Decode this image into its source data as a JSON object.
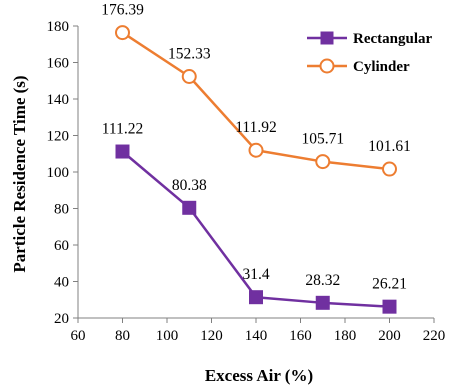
{
  "chart_data": {
    "type": "line",
    "x": [
      80,
      110,
      140,
      170,
      200
    ],
    "xlabel": "Excess Air (%)",
    "ylabel": "Particle Residence Time (s)",
    "xlim": [
      60,
      220
    ],
    "ylim": [
      20,
      180
    ],
    "xticks": [
      60,
      80,
      100,
      120,
      140,
      160,
      180,
      200,
      220
    ],
    "yticks": [
      20,
      40,
      60,
      80,
      100,
      120,
      140,
      160,
      180
    ],
    "grid": false,
    "legend_position": "top-right",
    "series": [
      {
        "name": "Rectangular",
        "values": [
          111.22,
          80.38,
          31.4,
          28.32,
          26.21
        ],
        "labels": [
          "111.22",
          "80.38",
          "31.4",
          "28.32",
          "26.21"
        ],
        "color": "#7030A0",
        "marker": "square-filled"
      },
      {
        "name": "Cylinder",
        "values": [
          176.39,
          152.33,
          111.92,
          105.71,
          101.61
        ],
        "labels": [
          "176.39",
          "152.33",
          "111.92",
          "105.71",
          "101.61"
        ],
        "color": "#ED7D31",
        "marker": "circle-open"
      }
    ]
  }
}
